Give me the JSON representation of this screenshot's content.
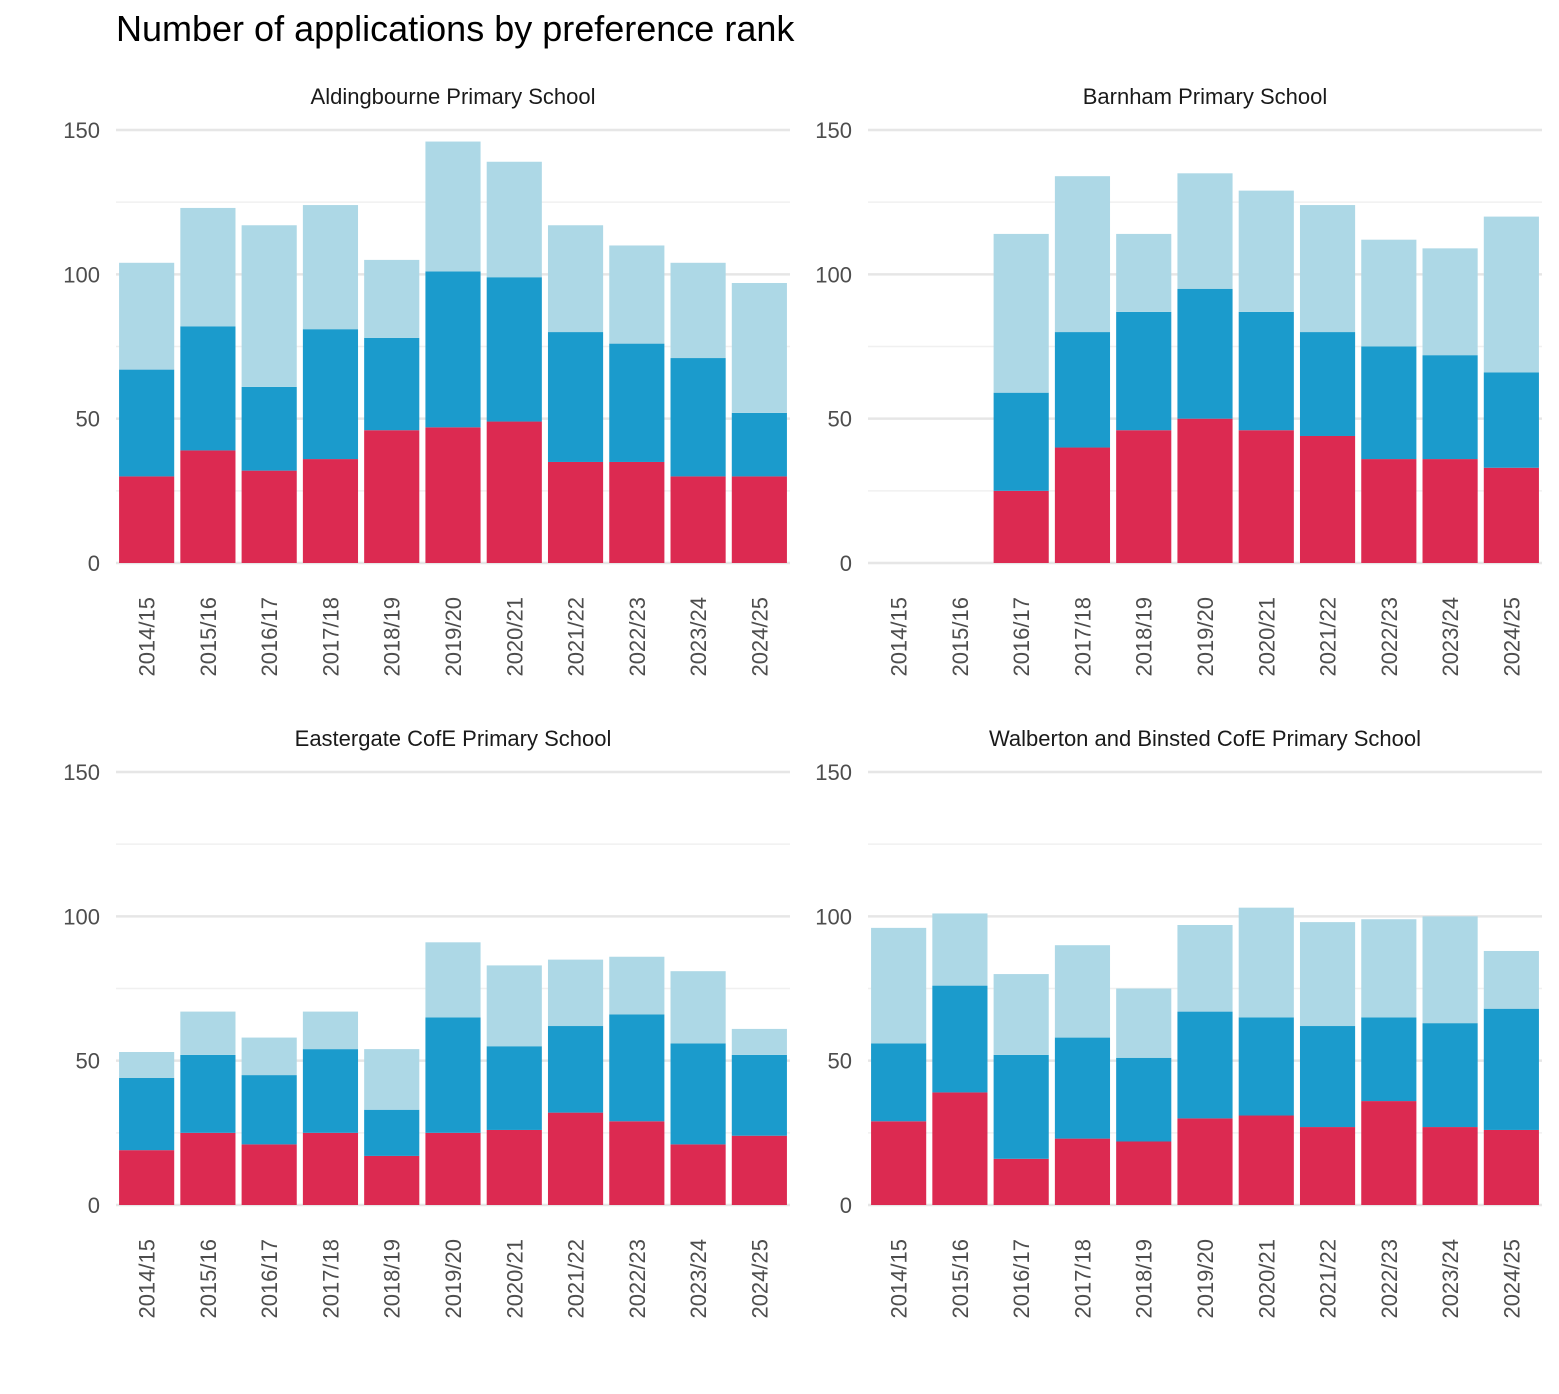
{
  "title": "Number of applications by preference rank",
  "colors": {
    "first": "#dc2a51",
    "second": "#1b9bcc",
    "third": "#add8e6",
    "grid": "#e6e6e6",
    "tick": "#4d4d4d",
    "strip": "#1a1a1a"
  },
  "chart_data": {
    "type": "bar",
    "stacked": true,
    "facets": [
      "Aldingbourne Primary School",
      "Barnham Primary School",
      "Eastergate CofE Primary School",
      "Walberton and Binsted CofE Primary School"
    ],
    "categories": [
      "2014/15",
      "2015/16",
      "2016/17",
      "2017/18",
      "2018/19",
      "2019/20",
      "2020/21",
      "2021/22",
      "2022/23",
      "2023/24",
      "2024/25"
    ],
    "ylim": [
      0,
      150
    ],
    "yticks": [
      0,
      50,
      100,
      150
    ],
    "grid": true,
    "legend": "none",
    "panels": [
      {
        "name": "Aldingbourne Primary School",
        "first": [
          30,
          39,
          32,
          36,
          46,
          47,
          49,
          35,
          35,
          30,
          30
        ],
        "second": [
          37,
          43,
          29,
          45,
          32,
          54,
          50,
          45,
          41,
          41,
          22
        ],
        "third": [
          37,
          41,
          56,
          43,
          27,
          45,
          40,
          37,
          34,
          33,
          45
        ]
      },
      {
        "name": "Barnham Primary School",
        "first": [
          null,
          null,
          25,
          40,
          46,
          50,
          46,
          44,
          36,
          36,
          33
        ],
        "second": [
          null,
          null,
          34,
          40,
          41,
          45,
          41,
          36,
          39,
          36,
          33
        ],
        "third": [
          null,
          null,
          55,
          54,
          27,
          40,
          42,
          44,
          37,
          37,
          54
        ]
      },
      {
        "name": "Eastergate CofE Primary School",
        "first": [
          19,
          25,
          21,
          25,
          17,
          25,
          26,
          32,
          29,
          21,
          24
        ],
        "second": [
          25,
          27,
          24,
          29,
          16,
          40,
          29,
          30,
          37,
          35,
          28
        ],
        "third": [
          9,
          15,
          13,
          13,
          21,
          26,
          28,
          23,
          20,
          25,
          9
        ]
      },
      {
        "name": "Walberton and Binsted CofE Primary School",
        "first": [
          29,
          39,
          16,
          23,
          22,
          30,
          31,
          27,
          36,
          27,
          26
        ],
        "second": [
          27,
          37,
          36,
          35,
          29,
          37,
          34,
          35,
          29,
          36,
          42
        ],
        "third": [
          40,
          25,
          28,
          32,
          24,
          30,
          38,
          36,
          34,
          37,
          20
        ]
      }
    ]
  }
}
